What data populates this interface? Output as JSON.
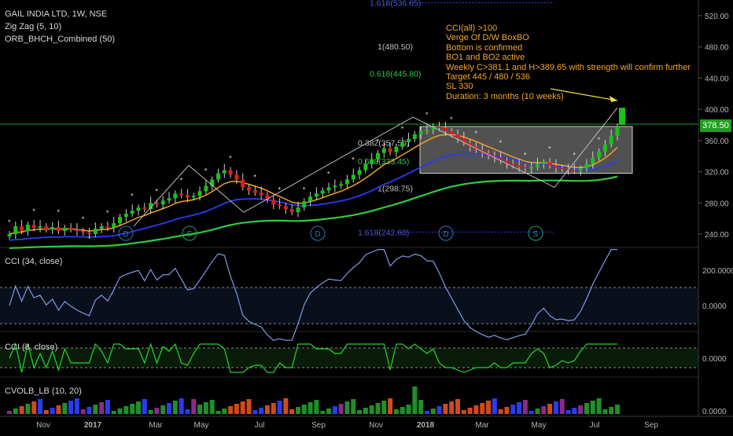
{
  "header": {
    "symbol_line": "GAIL INDIA LTD, 1W, NSE",
    "indicator_1": "Zig Zag (5, 10)",
    "indicator_2": "ORB_BHCH_Combined (50)"
  },
  "annotation": [
    "CCI(all) >100",
    "Verge Of D/W BoxBO",
    "Bottom is confirmed",
    "BO1 and BO2 active",
    "Weekly C>381.1 and H>389.65 with strength will confirm further",
    "Target 445 / 480 / 536",
    "SL 330",
    "Duration: 3 months (10 weeks)"
  ],
  "price_axis_ticks": [
    "520.00",
    "480.00",
    "440.00",
    "400.00",
    "360.00",
    "320.00",
    "280.00",
    "240.00"
  ],
  "price_tag": "378.50",
  "fib_labels": [
    "1.618(536.65)",
    "1(480.50)",
    "0.618(445.80)",
    "0.382(357.50)",
    "0.618(333.45)",
    "1(298.75)",
    "1.618(242.60)"
  ],
  "dividend_markers": [
    "D",
    "S",
    "D",
    "D",
    "S"
  ],
  "time_axis": [
    "Nov",
    "2017",
    "Mar",
    "May",
    "Jul",
    "Sep",
    "Nov",
    "2018",
    "Mar",
    "May",
    "Jul",
    "Sep"
  ],
  "panes": {
    "cci34": {
      "label": "CCI (34, close)",
      "ticks": [
        "200.0000",
        "0.0000"
      ]
    },
    "cci8": {
      "label": "CCI (8, close)",
      "ticks": [
        "0.0000"
      ]
    },
    "cvol": {
      "label": "CVOLB_LB (10, 20)",
      "ticks": [
        "0.0000"
      ]
    }
  },
  "colors": {
    "up": "#19c219",
    "down": "#e01c1c",
    "ema_fast": "#f0a020",
    "ema_mid": "#2a3cf0",
    "ema_slow": "#2ecc40",
    "cci34_line": "#7e9be8",
    "cci8_line": "#27d82a",
    "annotation": "#f5a623"
  },
  "chart_data": [
    {
      "type": "candlestick",
      "title": "GAIL INDIA LTD, 1W, NSE",
      "ylim": [
        225,
        545
      ],
      "x_ticks": [
        "Nov",
        "2017",
        "Mar",
        "May",
        "Jul",
        "Sep",
        "Nov",
        "2018",
        "Mar",
        "May",
        "Jul",
        "Sep"
      ],
      "close": [
        240,
        250,
        244,
        252,
        248,
        250,
        246,
        249,
        244,
        248,
        246,
        244,
        242,
        240,
        247,
        250,
        248,
        254,
        262,
        266,
        270,
        274,
        272,
        280,
        278,
        283,
        286,
        292,
        290,
        287,
        289,
        295,
        302,
        310,
        318,
        322,
        316,
        310,
        300,
        296,
        293,
        290,
        284,
        278,
        276,
        272,
        268,
        274,
        282,
        288,
        292,
        296,
        300,
        302,
        304,
        310,
        316,
        322,
        330,
        336,
        344,
        350,
        345,
        352,
        358,
        362,
        368,
        372,
        374,
        378,
        376,
        372,
        368,
        363,
        357,
        352,
        348,
        344,
        340,
        338,
        334,
        330,
        328,
        326,
        324,
        326,
        330,
        332,
        328,
        325,
        324,
        322,
        321,
        324,
        330,
        338,
        346,
        355,
        366,
        378
      ]
    }
  ]
}
